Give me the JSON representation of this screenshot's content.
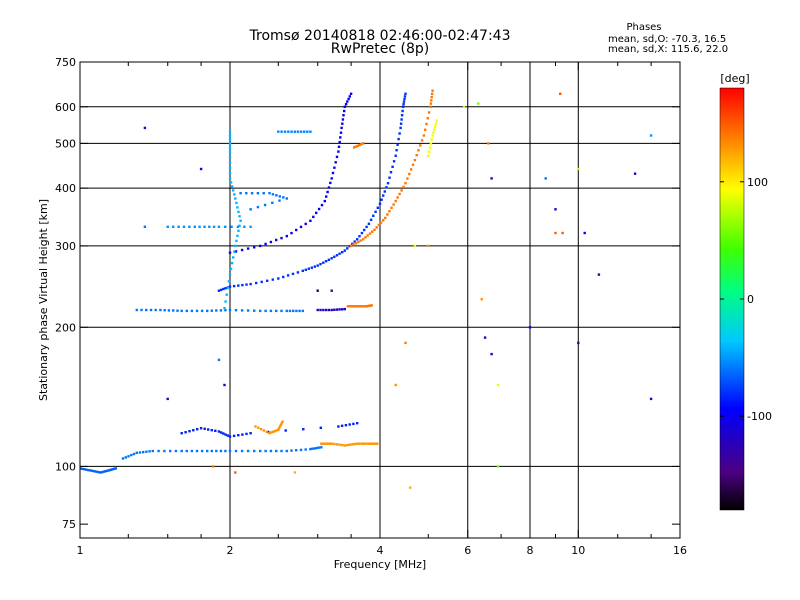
{
  "chart_data": {
    "type": "scatter",
    "title": "Tromsø 20140818 02:46:00-02:47:43",
    "subtitle": "RwPretec (8p)",
    "xlabel": "Frequency [MHz]",
    "ylabel": "Stationary phase Virtual Height [km]",
    "x_scale": "log",
    "y_scale": "log",
    "xlim": [
      1,
      16
    ],
    "ylim": [
      70,
      750
    ],
    "grid": true,
    "x_ticks": [
      {
        "value": 1,
        "label": "1"
      },
      {
        "value": 2,
        "label": "2"
      },
      {
        "value": 4,
        "label": "4"
      },
      {
        "value": 6,
        "label": "6"
      },
      {
        "value": 8,
        "label": "8"
      },
      {
        "value": 10,
        "label": "10"
      },
      {
        "value": 16,
        "label": "16"
      }
    ],
    "x_minor_ticks": [
      1.25,
      1.5,
      1.75,
      2.5,
      3,
      3.5,
      5,
      7,
      9,
      12,
      14
    ],
    "x_gridlines": [
      2,
      4,
      6,
      8,
      10
    ],
    "y_ticks": [
      {
        "value": 75,
        "label": "75"
      },
      {
        "value": 100,
        "label": "100"
      },
      {
        "value": 200,
        "label": "200"
      },
      {
        "value": 300,
        "label": "300"
      },
      {
        "value": 400,
        "label": "400"
      },
      {
        "value": 500,
        "label": "500"
      },
      {
        "value": 600,
        "label": "600"
      },
      {
        "value": 750,
        "label": "750"
      }
    ],
    "y_gridlines": [
      100,
      200,
      300,
      400,
      500,
      600
    ],
    "phase_stats": {
      "title": "Phases",
      "line_o": "mean, sd,O: -70.3, 16.5",
      "line_x": "mean, sd,X: 115.6, 22.0"
    },
    "colorbar": {
      "label": "[deg]",
      "range": [
        -180,
        180
      ],
      "ticks": [
        {
          "value": 100,
          "label": "100"
        },
        {
          "value": 0,
          "label": "0"
        },
        {
          "value": -100,
          "label": "-100"
        }
      ]
    },
    "traces": [
      {
        "name": "",
        "phase": -65,
        "points": [
          [
            1.0,
            99
          ],
          [
            1.05,
            98
          ],
          [
            1.1,
            97
          ],
          [
            1.14,
            98
          ],
          [
            1.18,
            99
          ]
        ]
      },
      {
        "name": "",
        "phase": -60,
        "points": [
          [
            1.22,
            104
          ],
          [
            1.3,
            107
          ],
          [
            1.4,
            108
          ],
          [
            1.6,
            108
          ],
          [
            1.8,
            108
          ],
          [
            2.0,
            108
          ],
          [
            2.3,
            108
          ],
          [
            2.6,
            108
          ],
          [
            2.9,
            109
          ],
          [
            3.05,
            110
          ]
        ]
      },
      {
        "name": "",
        "phase": 130,
        "points": [
          [
            3.05,
            112
          ],
          [
            3.2,
            112
          ],
          [
            3.4,
            111
          ],
          [
            3.6,
            112
          ],
          [
            3.8,
            112
          ],
          [
            3.95,
            112
          ]
        ]
      },
      {
        "name": "",
        "phase": -85,
        "points": [
          [
            1.6,
            118
          ],
          [
            1.75,
            121
          ],
          [
            1.9,
            119
          ],
          [
            2.0,
            116
          ],
          [
            2.2,
            118
          ],
          [
            3.3,
            122
          ],
          [
            3.6,
            124
          ]
        ]
      },
      {
        "name": "",
        "phase": 130,
        "points": [
          [
            2.25,
            122
          ],
          [
            2.4,
            118
          ],
          [
            2.5,
            120
          ],
          [
            2.55,
            125
          ]
        ]
      },
      {
        "name": "",
        "phase": -60,
        "points": [
          [
            1.3,
            218
          ],
          [
            1.45,
            218
          ],
          [
            1.6,
            217
          ],
          [
            1.8,
            217
          ],
          [
            2.0,
            218
          ],
          [
            2.3,
            217
          ],
          [
            2.6,
            217
          ],
          [
            2.8,
            217
          ]
        ]
      },
      {
        "name": "",
        "phase": -120,
        "points": [
          [
            3.0,
            218
          ],
          [
            3.2,
            218
          ],
          [
            3.4,
            219
          ]
        ]
      },
      {
        "name": "",
        "phase": 140,
        "points": [
          [
            3.45,
            222
          ],
          [
            3.6,
            222
          ],
          [
            3.75,
            222
          ],
          [
            3.85,
            223
          ]
        ]
      },
      {
        "name": "",
        "phase": -80,
        "points": [
          [
            1.9,
            240
          ],
          [
            2.0,
            245
          ],
          [
            2.2,
            248
          ],
          [
            2.5,
            255
          ],
          [
            2.8,
            265
          ],
          [
            3.0,
            272
          ],
          [
            3.2,
            282
          ],
          [
            3.4,
            293
          ],
          [
            3.6,
            310
          ],
          [
            3.8,
            335
          ],
          [
            4.0,
            370
          ],
          [
            4.15,
            410
          ],
          [
            4.3,
            470
          ],
          [
            4.4,
            540
          ],
          [
            4.45,
            600
          ],
          [
            4.5,
            640
          ]
        ]
      },
      {
        "name": "",
        "phase": -100,
        "points": [
          [
            2.0,
            290
          ],
          [
            2.3,
            300
          ],
          [
            2.6,
            315
          ],
          [
            2.9,
            340
          ],
          [
            3.1,
            375
          ],
          [
            3.2,
            420
          ],
          [
            3.3,
            480
          ],
          [
            3.35,
            540
          ],
          [
            3.4,
            600
          ],
          [
            3.5,
            640
          ]
        ]
      },
      {
        "name": "",
        "phase": 140,
        "points": [
          [
            3.5,
            300
          ],
          [
            3.7,
            310
          ],
          [
            3.9,
            325
          ],
          [
            4.1,
            345
          ],
          [
            4.3,
            375
          ],
          [
            4.5,
            410
          ],
          [
            4.7,
            460
          ],
          [
            4.9,
            520
          ],
          [
            5.05,
            600
          ],
          [
            5.1,
            650
          ]
        ]
      },
      {
        "name": "",
        "phase": 90,
        "points": [
          [
            5.0,
            470
          ],
          [
            5.1,
            520
          ],
          [
            5.2,
            560
          ]
        ]
      },
      {
        "name": "",
        "phase": -40,
        "points": [
          [
            1.95,
            220
          ],
          [
            2.0,
            260
          ],
          [
            2.05,
            300
          ],
          [
            2.1,
            340
          ],
          [
            2.05,
            380
          ],
          [
            2.0,
            420
          ],
          [
            2.0,
            480
          ],
          [
            2.0,
            530
          ]
        ]
      },
      {
        "name": "",
        "phase": -50,
        "points": [
          [
            1.5,
            330
          ],
          [
            1.7,
            330
          ],
          [
            1.9,
            330
          ],
          [
            2.2,
            330
          ]
        ]
      },
      {
        "name": "",
        "phase": -60,
        "points": [
          [
            2.1,
            390
          ],
          [
            2.4,
            390
          ],
          [
            2.6,
            380
          ],
          [
            2.2,
            360
          ]
        ]
      },
      {
        "name": "",
        "phase": -55,
        "points": [
          [
            2.5,
            530
          ],
          [
            2.7,
            530
          ],
          [
            2.9,
            530
          ]
        ]
      },
      {
        "name": "",
        "phase": 140,
        "points": [
          [
            3.55,
            490
          ],
          [
            3.7,
            500
          ]
        ]
      }
    ],
    "scatter_points": [
      {
        "x": 1.35,
        "y": 540,
        "phase": -120
      },
      {
        "x": 1.75,
        "y": 440,
        "phase": -110
      },
      {
        "x": 1.35,
        "y": 330,
        "phase": -60
      },
      {
        "x": 1.9,
        "y": 170,
        "phase": -60
      },
      {
        "x": 1.95,
        "y": 150,
        "phase": -120
      },
      {
        "x": 1.5,
        "y": 140,
        "phase": -120
      },
      {
        "x": 1.85,
        "y": 100,
        "phase": 140
      },
      {
        "x": 2.7,
        "y": 97,
        "phase": 120
      },
      {
        "x": 2.05,
        "y": 97,
        "phase": 150
      },
      {
        "x": 3.0,
        "y": 240,
        "phase": -160
      },
      {
        "x": 3.2,
        "y": 240,
        "phase": -140
      },
      {
        "x": 4.3,
        "y": 150,
        "phase": 130
      },
      {
        "x": 4.5,
        "y": 185,
        "phase": 140
      },
      {
        "x": 4.7,
        "y": 300,
        "phase": 90
      },
      {
        "x": 5.9,
        "y": 600,
        "phase": 80
      },
      {
        "x": 6.3,
        "y": 610,
        "phase": 60
      },
      {
        "x": 6.6,
        "y": 500,
        "phase": 140
      },
      {
        "x": 6.7,
        "y": 420,
        "phase": -120
      },
      {
        "x": 6.4,
        "y": 230,
        "phase": 130
      },
      {
        "x": 6.5,
        "y": 190,
        "phase": -120
      },
      {
        "x": 6.7,
        "y": 175,
        "phase": -100
      },
      {
        "x": 6.9,
        "y": 150,
        "phase": 90
      },
      {
        "x": 6.9,
        "y": 100,
        "phase": 60
      },
      {
        "x": 8.0,
        "y": 200,
        "phase": -110
      },
      {
        "x": 8.6,
        "y": 420,
        "phase": -60
      },
      {
        "x": 9.0,
        "y": 360,
        "phase": -120
      },
      {
        "x": 9.0,
        "y": 320,
        "phase": 150
      },
      {
        "x": 9.2,
        "y": 640,
        "phase": 150
      },
      {
        "x": 9.3,
        "y": 320,
        "phase": 150
      },
      {
        "x": 10.0,
        "y": 185,
        "phase": -120
      },
      {
        "x": 10.3,
        "y": 320,
        "phase": -100
      },
      {
        "x": 11.0,
        "y": 260,
        "phase": -120
      },
      {
        "x": 13.0,
        "y": 430,
        "phase": -120
      },
      {
        "x": 14.0,
        "y": 520,
        "phase": -50
      },
      {
        "x": 14.0,
        "y": 140,
        "phase": -120
      },
      {
        "x": 10.0,
        "y": 440,
        "phase": 80
      },
      {
        "x": 5.0,
        "y": 300,
        "phase": 130
      },
      {
        "x": 4.6,
        "y": 90,
        "phase": 120
      }
    ]
  }
}
